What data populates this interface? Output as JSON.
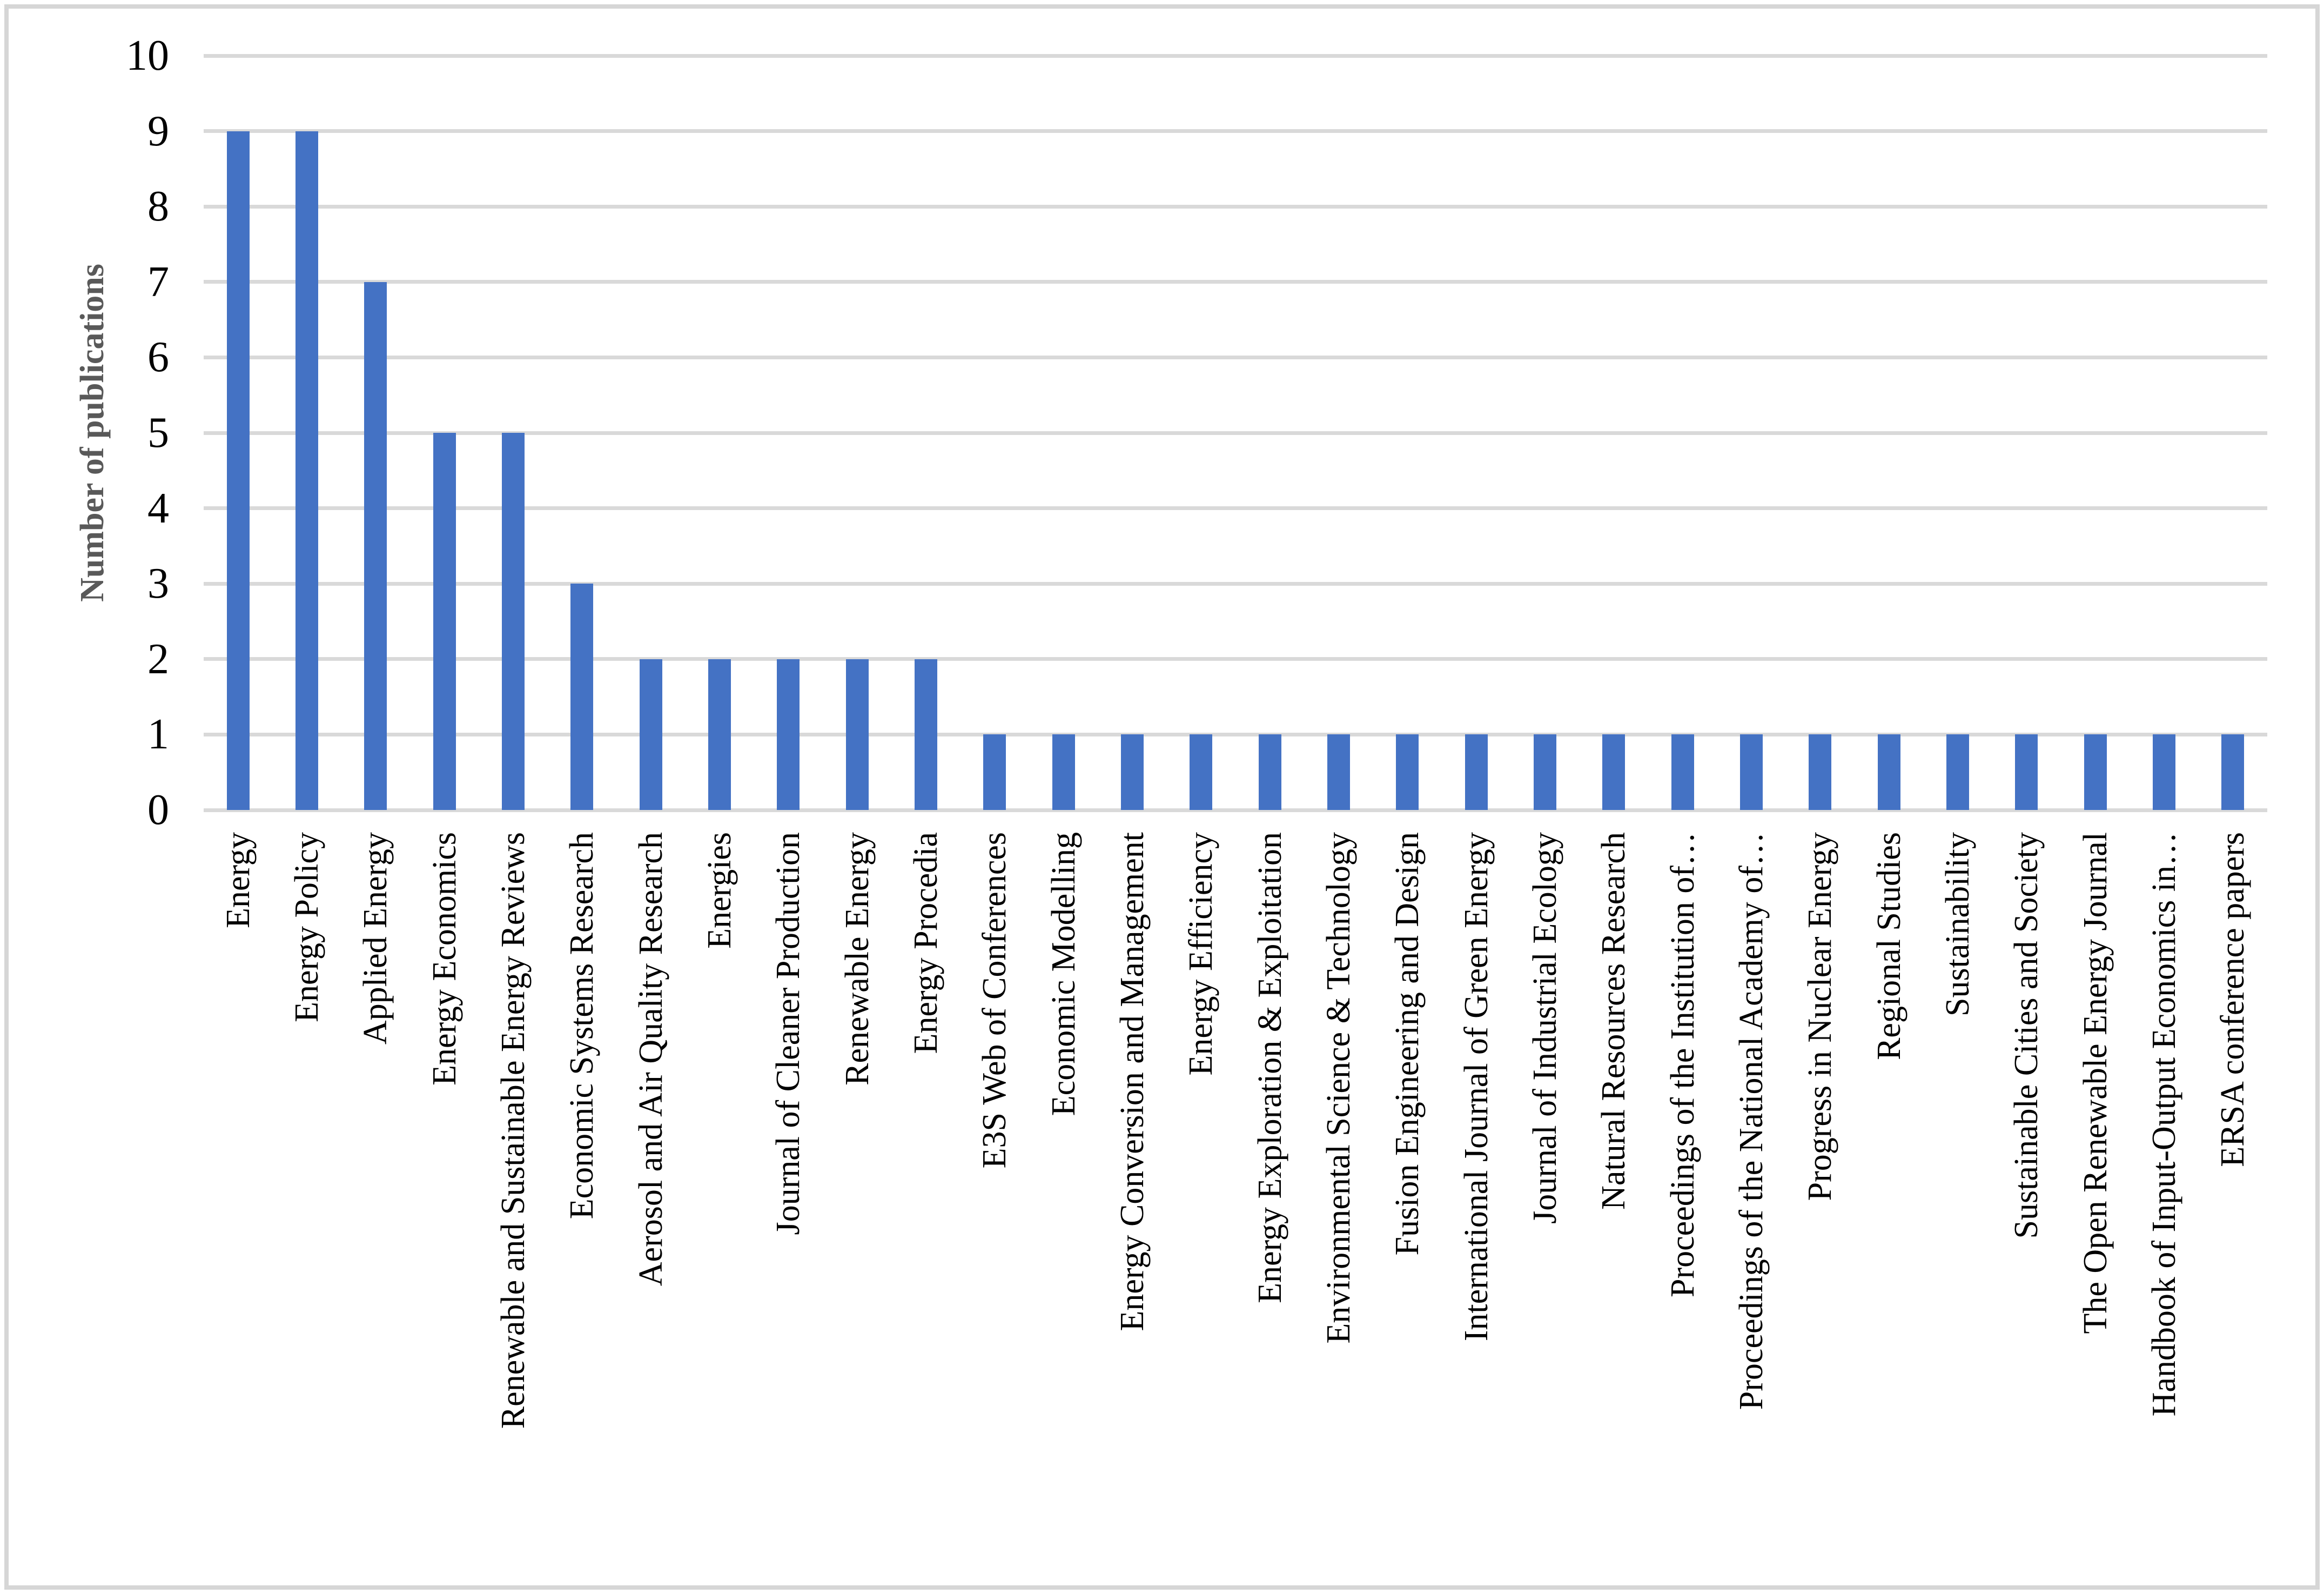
{
  "chart_data": {
    "type": "bar",
    "title": "",
    "xlabel": "",
    "ylabel": "Number of publications",
    "ylim": [
      0,
      10
    ],
    "yticks": [
      "0",
      "1",
      "2",
      "3",
      "4",
      "5",
      "6",
      "7",
      "8",
      "9",
      "10"
    ],
    "grid": true,
    "legend": false,
    "bar_color": "#4472c4",
    "gridline_color": "#d9d9d9",
    "axis_title_color": "#595959",
    "tick_label_color": "#000000",
    "categories": [
      "Energy",
      "Energy Policy",
      "Applied Energy",
      "Energy Economics",
      "Renewable and Sustainable Energy Reviews",
      "Economic Systems Research",
      "Aerosol and Air Quality Research",
      "Energies",
      "Journal of Cleaner Production",
      "Renewable Energy",
      "Energy Procedia",
      "E3S Web of Conferences",
      "Economic Modelling",
      "Energy Conversion and Management",
      "Energy Efficiency",
      "Energy Exploration & Exploitation",
      "Environmental Science & Technology",
      "Fusion Engineering and Design",
      "International Journal of Green Energy",
      "Journal of Industrial Ecology",
      "Natural Resources Research",
      "Proceedings of the Institution of…",
      "Proceedings of the National Academy of…",
      "Progress in Nuclear Energy",
      "Regional Studies",
      "Sustainability",
      "Sustainable Cities and Society",
      "The Open Renewable Energy Journal",
      "Handbook of Input-Output Economics in…",
      "ERSA conference papers"
    ],
    "values": [
      9,
      9,
      7,
      5,
      5,
      3,
      2,
      2,
      2,
      2,
      2,
      1,
      1,
      1,
      1,
      1,
      1,
      1,
      1,
      1,
      1,
      1,
      1,
      1,
      1,
      1,
      1,
      1,
      1,
      1
    ]
  }
}
